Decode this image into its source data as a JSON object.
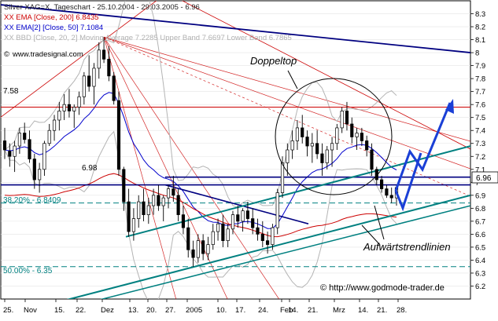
{
  "chart_data": {
    "type": "candlestick",
    "legend": {
      "row1": "Silver XAG=X, Tageschart - 25.10.2004 - 29.03.2005 - 6.96",
      "row2": "XX EMA [Close, 200] 6.8435",
      "row3": "XX EMA[2] [Close, 50] 7.1084",
      "row4": "XX BBD [Close, 20, 2] Moving Average 7.2285 Upper Band 7.6697 Lower Band 6.7865",
      "source": "www.tradesignal.com"
    },
    "colors": {
      "ema200": "#cc0000",
      "ema50": "#0000cc",
      "bollinger": "#b4b4b4",
      "trend": "#008080",
      "resistance": "#000080",
      "projection": "#1a3fd6",
      "fans": "#cc0000"
    },
    "y_axis": {
      "min": 6.1,
      "max": 8.4,
      "ticks": [
        "6.2",
        "6.3",
        "6.4",
        "6.5",
        "6.6",
        "6.7",
        "6.8",
        "6.9",
        "7",
        "7.1",
        "7.2",
        "7.3",
        "7.4",
        "7.5",
        "7.6",
        "7.7",
        "7.8",
        "7.9",
        "8",
        "8.1",
        "8.2",
        "8.3"
      ],
      "last_price": "6.96"
    },
    "x_axis": {
      "ticks": [
        "25.",
        "Nov",
        "15.",
        "22.",
        "Dez",
        "13.",
        "20.",
        "27.",
        "2005",
        "10.",
        "17.",
        "24.",
        "Feb",
        "14.",
        "21.",
        "Mrz",
        "14.",
        "21.",
        "28."
      ]
    },
    "levels": [
      {
        "label": "7.58",
        "value": 7.58
      },
      {
        "label": "6.98",
        "value": 6.98
      },
      {
        "label": "38.20% - 6.8409",
        "value": 6.8409
      },
      {
        "label": "50.00% - 6.35",
        "value": 6.35
      }
    ],
    "annotations": {
      "double_top": "Doppeltop",
      "uptrend_lines": "Aufwärtstrendlinien",
      "credit": "© http://www.godmode-trader.de"
    },
    "ohlc": [
      [
        7.32,
        7.42,
        7.18,
        7.25
      ],
      [
        7.24,
        7.3,
        7.12,
        7.2
      ],
      [
        7.2,
        7.32,
        7.08,
        7.28
      ],
      [
        7.28,
        7.42,
        7.22,
        7.38
      ],
      [
        7.38,
        7.46,
        7.3,
        7.33
      ],
      [
        7.33,
        7.4,
        7.15,
        7.18
      ],
      [
        7.18,
        7.22,
        6.95,
        7.02
      ],
      [
        7.02,
        7.15,
        6.92,
        7.1
      ],
      [
        7.1,
        7.32,
        7.05,
        7.3
      ],
      [
        7.3,
        7.45,
        7.28,
        7.4
      ],
      [
        7.4,
        7.52,
        7.32,
        7.48
      ],
      [
        7.48,
        7.62,
        7.4,
        7.55
      ],
      [
        7.55,
        7.68,
        7.48,
        7.6
      ],
      [
        7.6,
        7.72,
        7.5,
        7.55
      ],
      [
        7.55,
        7.6,
        7.42,
        7.58
      ],
      [
        7.58,
        7.7,
        7.52,
        7.66
      ],
      [
        7.66,
        7.85,
        7.6,
        7.82
      ],
      [
        7.82,
        7.98,
        7.7,
        7.74
      ],
      [
        7.74,
        7.92,
        7.6,
        7.88
      ],
      [
        7.88,
        8.08,
        7.8,
        8.02
      ],
      [
        8.02,
        8.12,
        7.92,
        7.95
      ],
      [
        7.95,
        8.05,
        7.78,
        7.82
      ],
      [
        7.82,
        7.85,
        7.6,
        7.63
      ],
      [
        7.63,
        7.7,
        7.05,
        7.1
      ],
      [
        7.1,
        7.12,
        6.78,
        6.85
      ],
      [
        6.85,
        6.95,
        6.58,
        6.62
      ],
      [
        6.62,
        6.8,
        6.55,
        6.72
      ],
      [
        6.72,
        6.9,
        6.65,
        6.85
      ],
      [
        6.85,
        6.95,
        6.7,
        6.75
      ],
      [
        6.75,
        6.88,
        6.68,
        6.82
      ],
      [
        6.82,
        6.95,
        6.75,
        6.9
      ],
      [
        6.9,
        6.98,
        6.78,
        6.82
      ],
      [
        6.82,
        6.9,
        6.7,
        6.88
      ],
      [
        6.88,
        6.98,
        6.8,
        6.95
      ],
      [
        6.95,
        7.05,
        6.85,
        6.9
      ],
      [
        6.9,
        6.95,
        6.7,
        6.75
      ],
      [
        6.75,
        6.82,
        6.6,
        6.65
      ],
      [
        6.65,
        6.72,
        6.42,
        6.48
      ],
      [
        6.48,
        6.55,
        6.35,
        6.42
      ],
      [
        6.42,
        6.6,
        6.38,
        6.55
      ],
      [
        6.55,
        6.6,
        6.4,
        6.45
      ],
      [
        6.45,
        6.58,
        6.4,
        6.52
      ],
      [
        6.52,
        6.68,
        6.48,
        6.62
      ],
      [
        6.62,
        6.72,
        6.55,
        6.68
      ],
      [
        6.68,
        6.75,
        6.5,
        6.55
      ],
      [
        6.55,
        6.68,
        6.5,
        6.64
      ],
      [
        6.64,
        6.78,
        6.6,
        6.75
      ],
      [
        6.75,
        6.82,
        6.65,
        6.7
      ],
      [
        6.7,
        6.8,
        6.62,
        6.78
      ],
      [
        6.78,
        6.85,
        6.68,
        6.72
      ],
      [
        6.72,
        6.8,
        6.6,
        6.65
      ],
      [
        6.65,
        6.72,
        6.55,
        6.6
      ],
      [
        6.6,
        6.7,
        6.5,
        6.55
      ],
      [
        6.55,
        6.62,
        6.45,
        6.52
      ],
      [
        6.52,
        6.68,
        6.48,
        6.65
      ],
      [
        6.65,
        6.95,
        6.6,
        6.92
      ],
      [
        6.92,
        7.2,
        6.88,
        7.15
      ],
      [
        7.15,
        7.3,
        7.05,
        7.25
      ],
      [
        7.25,
        7.4,
        7.18,
        7.32
      ],
      [
        7.32,
        7.48,
        7.25,
        7.42
      ],
      [
        7.42,
        7.52,
        7.3,
        7.35
      ],
      [
        7.35,
        7.4,
        7.2,
        7.28
      ],
      [
        7.28,
        7.38,
        7.15,
        7.3
      ],
      [
        7.3,
        7.4,
        7.18,
        7.22
      ],
      [
        7.22,
        7.3,
        7.05,
        7.15
      ],
      [
        7.15,
        7.28,
        7.1,
        7.25
      ],
      [
        7.25,
        7.35,
        7.12,
        7.3
      ],
      [
        7.3,
        7.45,
        7.25,
        7.42
      ],
      [
        7.42,
        7.58,
        7.38,
        7.55
      ],
      [
        7.55,
        7.62,
        7.4,
        7.45
      ],
      [
        7.45,
        7.5,
        7.3,
        7.35
      ],
      [
        7.35,
        7.42,
        7.25,
        7.38
      ],
      [
        7.38,
        7.42,
        7.28,
        7.32
      ],
      [
        7.32,
        7.36,
        7.2,
        7.25
      ],
      [
        7.25,
        7.3,
        7.05,
        7.1
      ],
      [
        7.1,
        7.12,
        6.98,
        7.02
      ],
      [
        7.02,
        7.05,
        6.92,
        6.95
      ],
      [
        6.95,
        6.98,
        6.88,
        6.9
      ],
      [
        6.9,
        6.96,
        6.84,
        6.88
      ],
      [
        6.88,
        6.98,
        6.82,
        6.96
      ]
    ]
  }
}
